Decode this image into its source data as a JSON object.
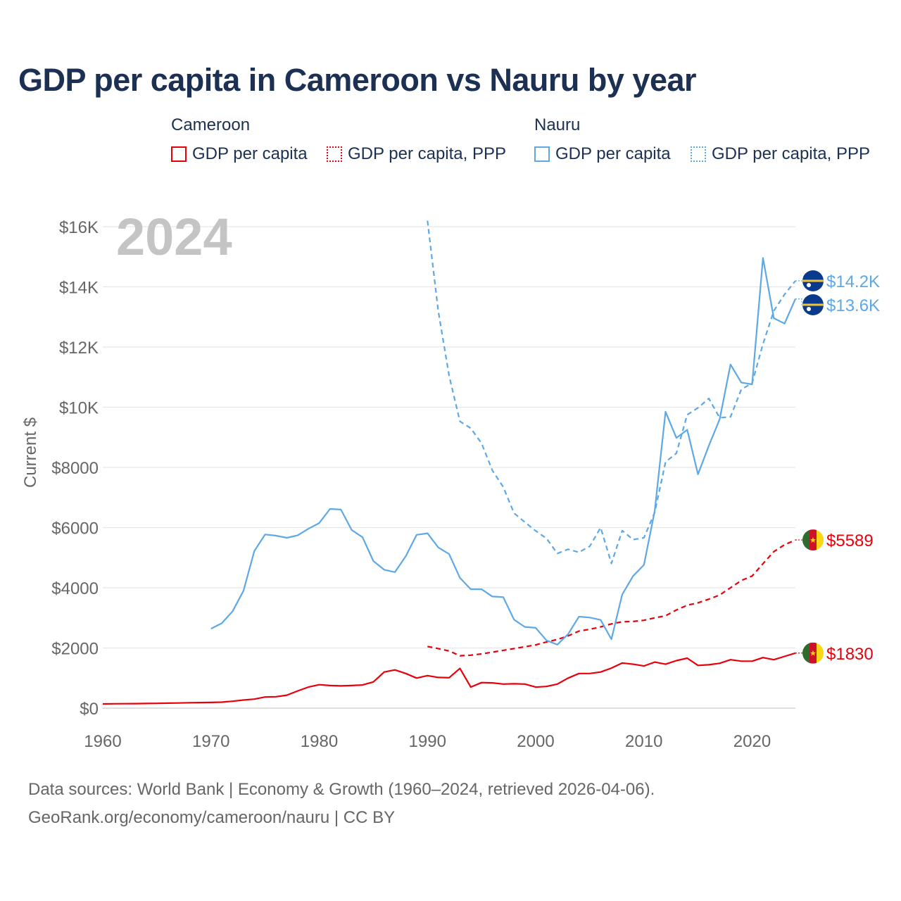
{
  "title": "GDP per capita in Cameroon vs Nauru by year",
  "legend": {
    "groups": [
      {
        "name": "Cameroon",
        "items": [
          {
            "label": "GDP per capita",
            "style": "solid",
            "color": "#e8000b"
          },
          {
            "label": "GDP per capita, PPP",
            "style": "dotted",
            "color": "#e8000b"
          }
        ]
      },
      {
        "name": "Nauru",
        "items": [
          {
            "label": "GDP per capita",
            "style": "solid",
            "color": "#5ea8e6"
          },
          {
            "label": "GDP per capita, PPP",
            "style": "dotted",
            "color": "#5ea8e6"
          }
        ]
      }
    ]
  },
  "footer": {
    "line1": "Data sources: World Bank | Economy & Growth (1960–2024, retrieved 2026-04-06).",
    "line2": "GeoRank.org/economy/cameroon/nauru | CC BY"
  },
  "chart_data": {
    "type": "line",
    "year_label": "2024",
    "ylabel": "Current $",
    "xlim": [
      1960,
      2024
    ],
    "ylim": [
      0,
      16000
    ],
    "x_ticks": [
      1960,
      1970,
      1980,
      1990,
      2000,
      2010,
      2020
    ],
    "x_tick_labels": [
      "1960",
      "1970",
      "1980",
      "1990",
      "2000",
      "2010",
      "2020"
    ],
    "y_ticks": [
      0,
      2000,
      4000,
      6000,
      8000,
      10000,
      12000,
      14000,
      16000
    ],
    "y_tick_labels": [
      "$0",
      "$2000",
      "$4000",
      "$6000",
      "$8000",
      "$10K",
      "$12K",
      "$14K",
      "$16K"
    ],
    "grid": true,
    "series": [
      {
        "name": "Cameroon GDP per capita",
        "country": "Cameroon",
        "dash": "solid",
        "color": "#e8000b",
        "end_label": "$1830",
        "x": [
          1960,
          1961,
          1962,
          1963,
          1964,
          1965,
          1966,
          1967,
          1968,
          1969,
          1970,
          1971,
          1972,
          1973,
          1974,
          1975,
          1976,
          1977,
          1978,
          1979,
          1980,
          1981,
          1982,
          1983,
          1984,
          1985,
          1986,
          1987,
          1988,
          1989,
          1990,
          1991,
          1992,
          1993,
          1994,
          1995,
          1996,
          1997,
          1998,
          1999,
          2000,
          2001,
          2002,
          2003,
          2004,
          2005,
          2006,
          2007,
          2008,
          2009,
          2010,
          2011,
          2012,
          2013,
          2014,
          2015,
          2016,
          2017,
          2018,
          2019,
          2020,
          2021,
          2022,
          2023,
          2024
        ],
        "values": [
          140,
          145,
          148,
          150,
          155,
          160,
          165,
          170,
          180,
          185,
          190,
          200,
          230,
          270,
          300,
          370,
          380,
          430,
          570,
          700,
          780,
          750,
          740,
          750,
          770,
          870,
          1200,
          1270,
          1150,
          1000,
          1080,
          1020,
          1010,
          1320,
          700,
          850,
          840,
          800,
          810,
          800,
          700,
          720,
          800,
          1000,
          1150,
          1150,
          1200,
          1330,
          1500,
          1460,
          1400,
          1530,
          1460,
          1580,
          1660,
          1420,
          1440,
          1490,
          1610,
          1560,
          1560,
          1680,
          1610,
          1720,
          1830
        ]
      },
      {
        "name": "Cameroon GDP per capita, PPP",
        "country": "Cameroon",
        "dash": "dashed",
        "color": "#e8000b",
        "end_label": "$5589",
        "x": [
          1990,
          1991,
          1992,
          1993,
          1994,
          1995,
          1996,
          1997,
          1998,
          1999,
          2000,
          2001,
          2002,
          2003,
          2004,
          2005,
          2006,
          2007,
          2008,
          2009,
          2010,
          2011,
          2012,
          2013,
          2014,
          2015,
          2016,
          2017,
          2018,
          2019,
          2020,
          2021,
          2022,
          2023,
          2024
        ],
        "values": [
          2050,
          1980,
          1900,
          1740,
          1760,
          1800,
          1860,
          1920,
          1980,
          2040,
          2100,
          2200,
          2280,
          2400,
          2560,
          2620,
          2700,
          2800,
          2870,
          2880,
          2920,
          3000,
          3070,
          3260,
          3420,
          3500,
          3620,
          3760,
          4000,
          4240,
          4390,
          4800,
          5200,
          5430,
          5589
        ]
      },
      {
        "name": "Nauru GDP per capita",
        "country": "Nauru",
        "dash": "solid",
        "color": "#5ea8e6",
        "end_label": "$13.6K",
        "x": [
          1970,
          1971,
          1972,
          1973,
          1974,
          1975,
          1976,
          1977,
          1978,
          1979,
          1980,
          1981,
          1982,
          1983,
          1984,
          1985,
          1986,
          1987,
          1988,
          1989,
          1990,
          1991,
          1992,
          1993,
          1994,
          1995,
          1996,
          1997,
          1998,
          1999,
          2000,
          2001,
          2002,
          2003,
          2004,
          2005,
          2006,
          2007,
          2008,
          2009,
          2010,
          2011,
          2012,
          2013,
          2014,
          2015,
          2016,
          2017,
          2018,
          2019,
          2020,
          2021,
          2022,
          2023,
          2024
        ],
        "values": [
          2640,
          2820,
          3220,
          3900,
          5220,
          5770,
          5730,
          5660,
          5740,
          5960,
          6150,
          6620,
          6600,
          5920,
          5680,
          4890,
          4600,
          4520,
          5050,
          5760,
          5810,
          5340,
          5120,
          4330,
          3950,
          3950,
          3710,
          3690,
          2940,
          2700,
          2670,
          2250,
          2110,
          2460,
          3040,
          3010,
          2930,
          2290,
          3780,
          4390,
          4760,
          6550,
          9850,
          8980,
          9250,
          7770,
          8720,
          9600,
          11420,
          10820,
          10760,
          14960,
          12960,
          12780,
          13600
        ]
      },
      {
        "name": "Nauru GDP per capita, PPP",
        "country": "Nauru",
        "dash": "dashed",
        "color": "#5ea8e6",
        "end_label": "$14.2K",
        "x": [
          1990,
          1991,
          1992,
          1993,
          1994,
          1995,
          1996,
          1997,
          1998,
          1999,
          2000,
          2001,
          2002,
          2003,
          2004,
          2005,
          2006,
          2007,
          2008,
          2009,
          2010,
          2011,
          2012,
          2013,
          2014,
          2015,
          2016,
          2017,
          2018,
          2019,
          2020,
          2021,
          2022,
          2023,
          2024
        ],
        "values": [
          16200,
          13200,
          11050,
          9530,
          9300,
          8800,
          7900,
          7350,
          6480,
          6180,
          5890,
          5640,
          5140,
          5280,
          5180,
          5380,
          6000,
          4810,
          5900,
          5600,
          5660,
          6500,
          8180,
          8470,
          9750,
          9980,
          10290,
          9650,
          9680,
          10590,
          10800,
          12100,
          13200,
          13750,
          14200
        ]
      }
    ]
  }
}
